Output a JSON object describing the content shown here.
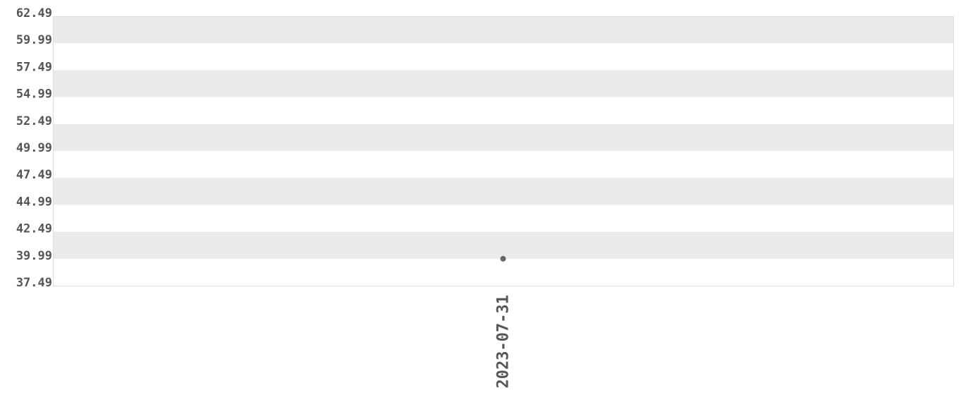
{
  "chart_data": {
    "type": "scatter",
    "title": "",
    "xlabel": "",
    "ylabel": "",
    "ylim": [
      37.49,
      62.49
    ],
    "y_ticks": [
      "37.49",
      "39.99",
      "42.49",
      "44.99",
      "47.49",
      "49.99",
      "52.49",
      "54.99",
      "57.49",
      "59.99",
      "62.49"
    ],
    "categories": [
      "2023-07-31"
    ],
    "values": [
      39.99
    ],
    "grid": "alternating horizontal bands",
    "colors": {
      "band": "#ebebeb",
      "point": "#666666",
      "text": "#555555",
      "border": "#dddddd"
    }
  }
}
